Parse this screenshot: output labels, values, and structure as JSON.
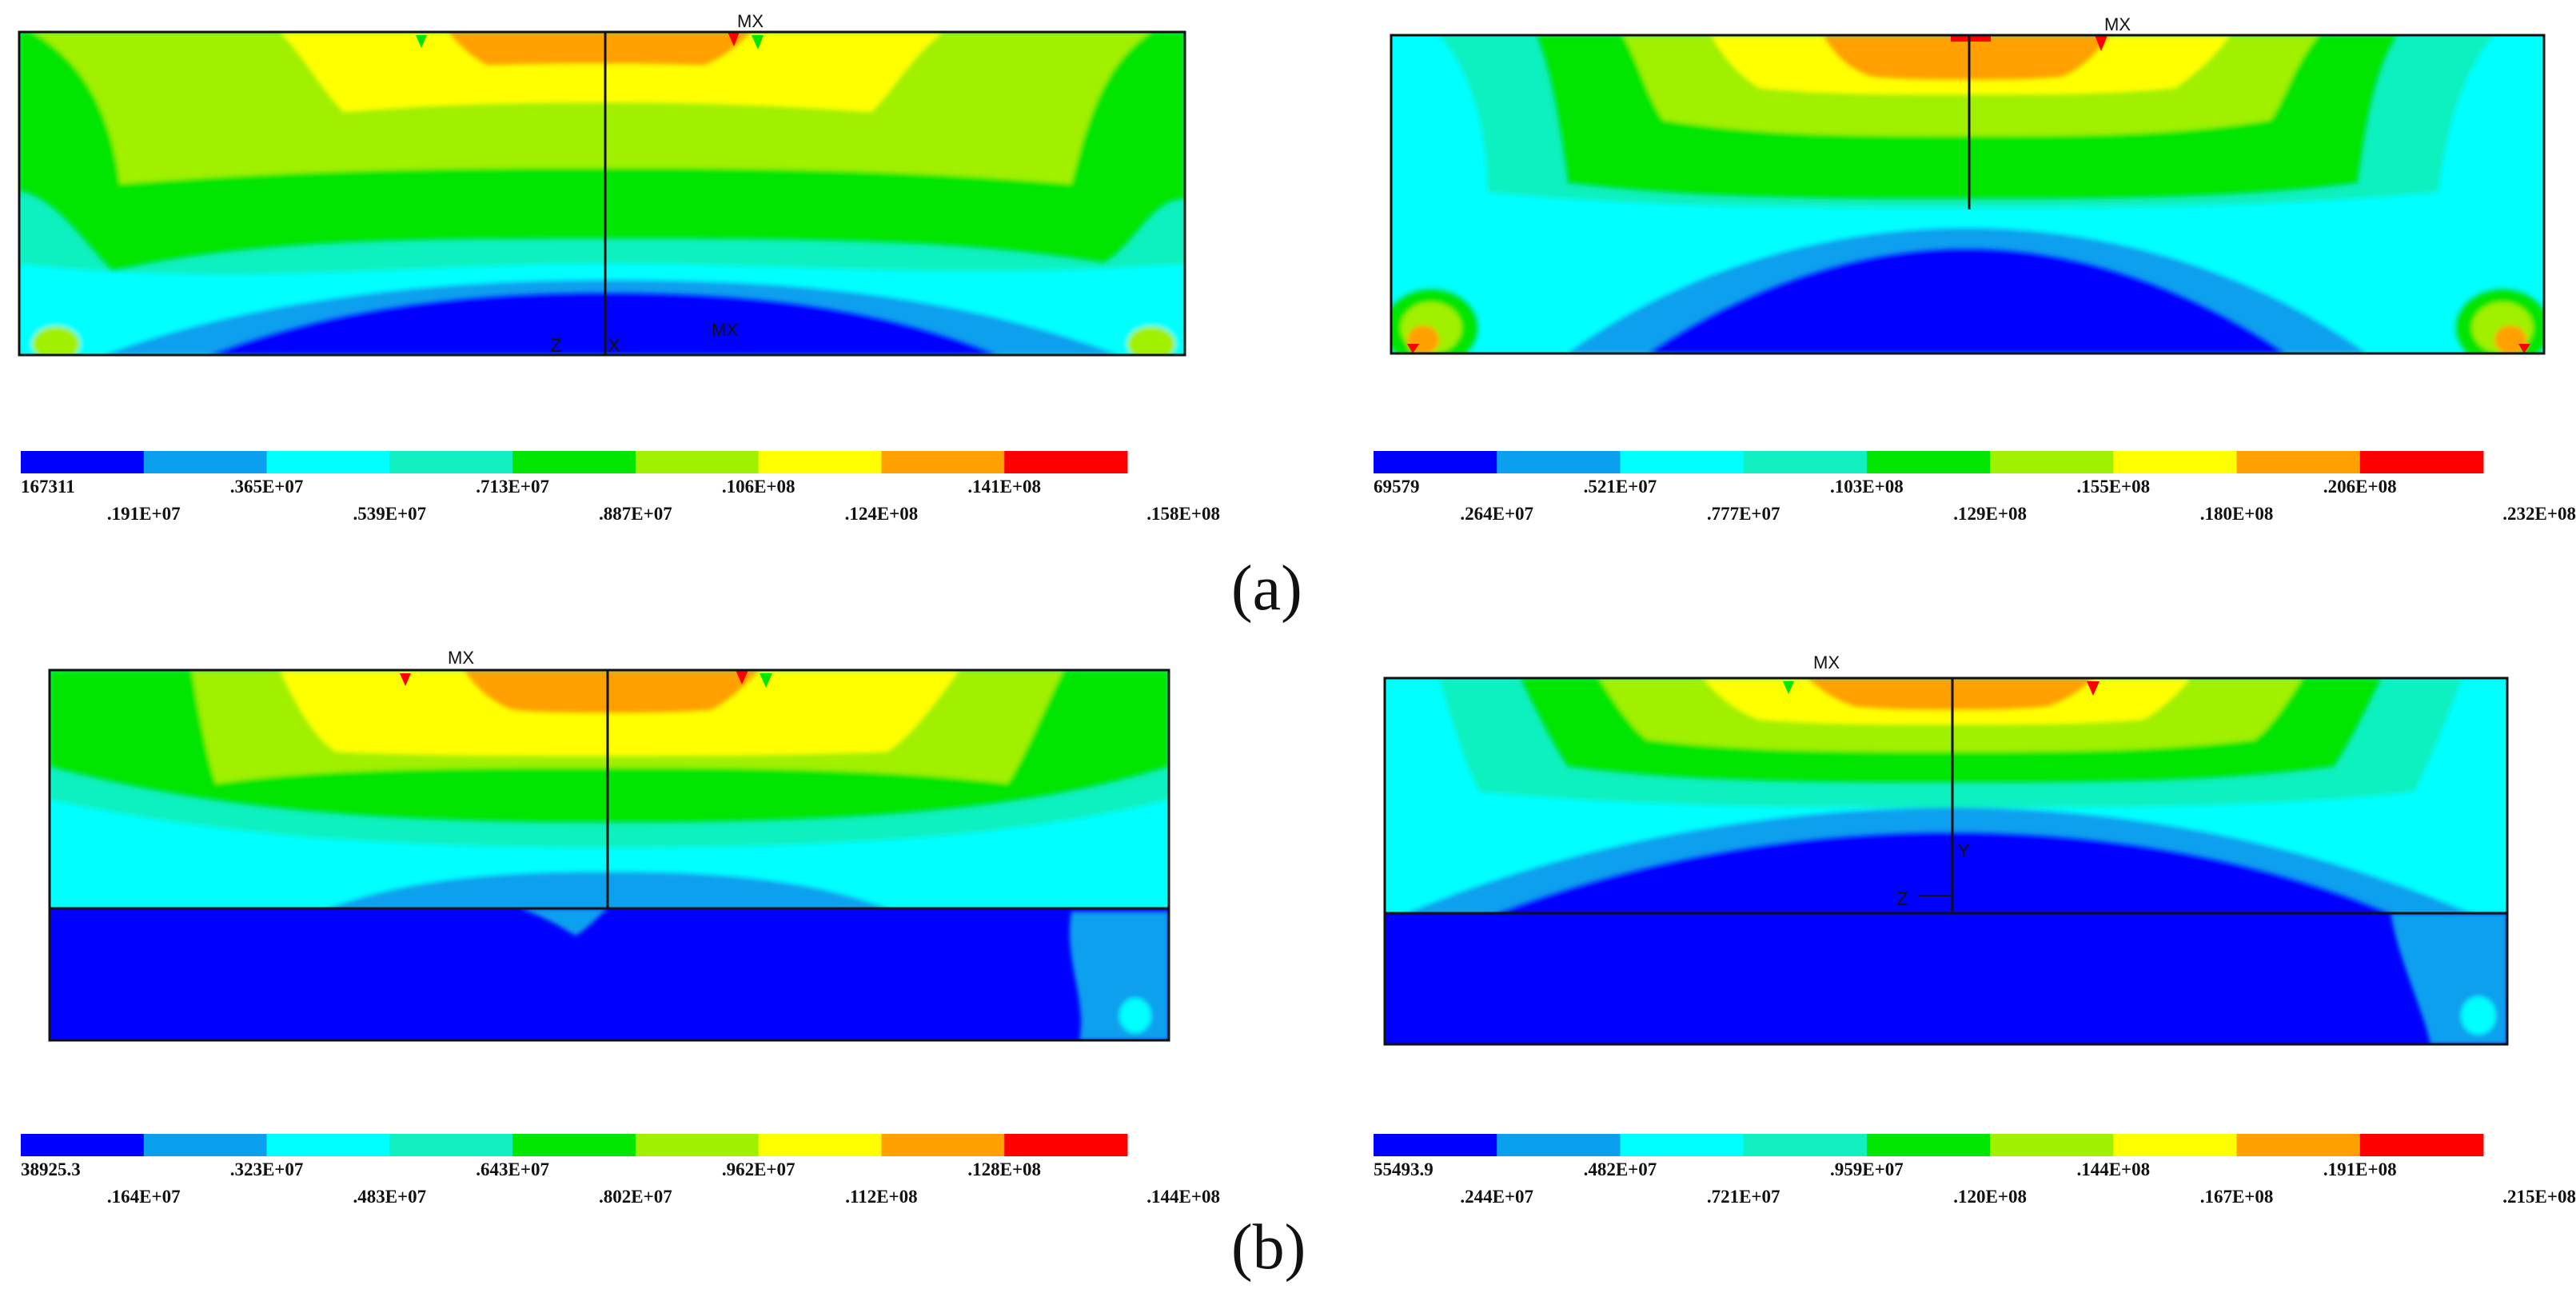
{
  "figure": {
    "captions": {
      "a": "(a)",
      "b": "(b)"
    },
    "panels": [
      {
        "id": "a-left",
        "labels": {
          "mx_top": "MX",
          "mx_bottom": "MX",
          "axis_z": "Z",
          "axis_x": "X"
        },
        "legend": {
          "min_label": "167311",
          "ticks_upper": [
            ".365E+07",
            ".713E+07",
            ".106E+08",
            ".141E+08"
          ],
          "ticks_lower": [
            ".191E+07",
            ".539E+07",
            ".887E+07",
            ".124E+08",
            ".158E+08"
          ]
        }
      },
      {
        "id": "a-right",
        "labels": {
          "mx_top": "MX"
        },
        "legend": {
          "min_label": "69579",
          "ticks_upper": [
            ".521E+07",
            ".103E+08",
            ".155E+08",
            ".206E+08"
          ],
          "ticks_lower": [
            ".264E+07",
            ".777E+07",
            ".129E+08",
            ".180E+08",
            ".232E+08"
          ]
        }
      },
      {
        "id": "b-left",
        "labels": {
          "mx_top": "MX"
        },
        "legend": {
          "min_label": "38925.3",
          "ticks_upper": [
            ".323E+07",
            ".643E+07",
            ".962E+07",
            ".128E+08"
          ],
          "ticks_lower": [
            ".164E+07",
            ".483E+07",
            ".802E+07",
            ".112E+08",
            ".144E+08"
          ]
        }
      },
      {
        "id": "b-right",
        "labels": {
          "mx_top": "MX",
          "axis_y": "Y",
          "axis_z": "Z"
        },
        "legend": {
          "min_label": "55493.9",
          "ticks_upper": [
            ".482E+07",
            ".959E+07",
            ".144E+08",
            ".191E+08"
          ],
          "ticks_lower": [
            ".244E+07",
            ".721E+07",
            ".120E+08",
            ".167E+08",
            ".215E+08"
          ]
        }
      }
    ],
    "colors": {
      "scale": [
        "#0000ff",
        "#0aa0ee",
        "#00ffff",
        "#10f0c0",
        "#00e600",
        "#a0f000",
        "#ffff00",
        "#ffa000",
        "#ff0000"
      ],
      "outline": "#111111"
    }
  }
}
